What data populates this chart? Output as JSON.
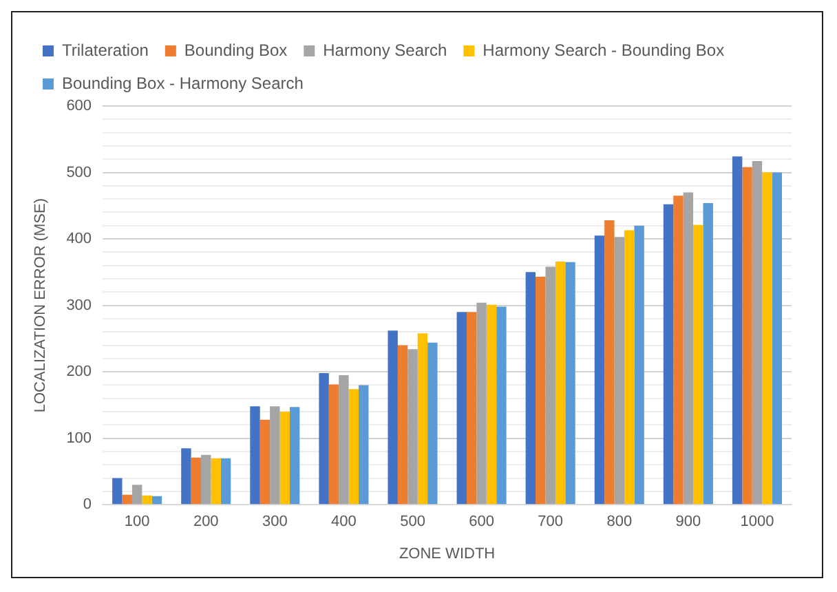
{
  "chart_data": {
    "type": "bar",
    "xlabel": "ZONE WIDTH",
    "ylabel": "LOCALIZATION ERROR (MSE)",
    "categories": [
      "100",
      "200",
      "300",
      "400",
      "500",
      "600",
      "700",
      "800",
      "900",
      "1000"
    ],
    "series": [
      {
        "name": "Trilateration",
        "color": "#4472c4",
        "values": [
          40,
          85,
          148,
          198,
          262,
          290,
          350,
          405,
          452,
          524
        ]
      },
      {
        "name": "Bounding Box",
        "color": "#ed7d31",
        "values": [
          15,
          71,
          128,
          181,
          240,
          290,
          343,
          428,
          465,
          508
        ]
      },
      {
        "name": "Harmony Search",
        "color": "#a5a5a5",
        "values": [
          30,
          75,
          148,
          195,
          234,
          304,
          358,
          403,
          470,
          517
        ]
      },
      {
        "name": "Harmony Search - Bounding Box",
        "color": "#ffc000",
        "values": [
          14,
          70,
          140,
          174,
          258,
          301,
          366,
          413,
          421,
          500
        ]
      },
      {
        "name": "Bounding Box - Harmony Search",
        "color": "#5b9bd5",
        "values": [
          13,
          70,
          147,
          180,
          244,
          298,
          365,
          420,
          454,
          500
        ]
      }
    ],
    "ylim": [
      0,
      600
    ],
    "yticks": [
      0,
      {
        "value": 20,
        "label": null
      },
      {
        "value": 40,
        "label": null
      },
      {
        "value": 60,
        "label": null
      },
      {
        "value": 80,
        "label": null
      },
      100,
      {
        "value": 120,
        "label": null
      },
      {
        "value": 140,
        "label": null
      },
      {
        "value": 160,
        "label": null
      },
      {
        "value": 180,
        "label": null
      },
      200,
      {
        "value": 220,
        "label": null
      },
      {
        "value": 240,
        "label": null
      },
      {
        "value": 260,
        "label": null
      },
      {
        "value": 280,
        "label": null
      },
      300,
      {
        "value": 320,
        "label": null
      },
      {
        "value": 340,
        "label": null
      },
      {
        "value": 360,
        "label": null
      },
      {
        "value": 380,
        "label": null
      },
      400,
      {
        "value": 420,
        "label": null
      },
      {
        "value": 440,
        "label": null
      },
      {
        "value": 460,
        "label": null
      },
      {
        "value": 480,
        "label": null
      },
      500,
      {
        "value": 520,
        "label": null
      },
      {
        "value": 540,
        "label": null
      },
      {
        "value": 560,
        "label": null
      },
      {
        "value": 580,
        "label": null
      },
      600
    ],
    "grid": "y",
    "legend": "top"
  }
}
